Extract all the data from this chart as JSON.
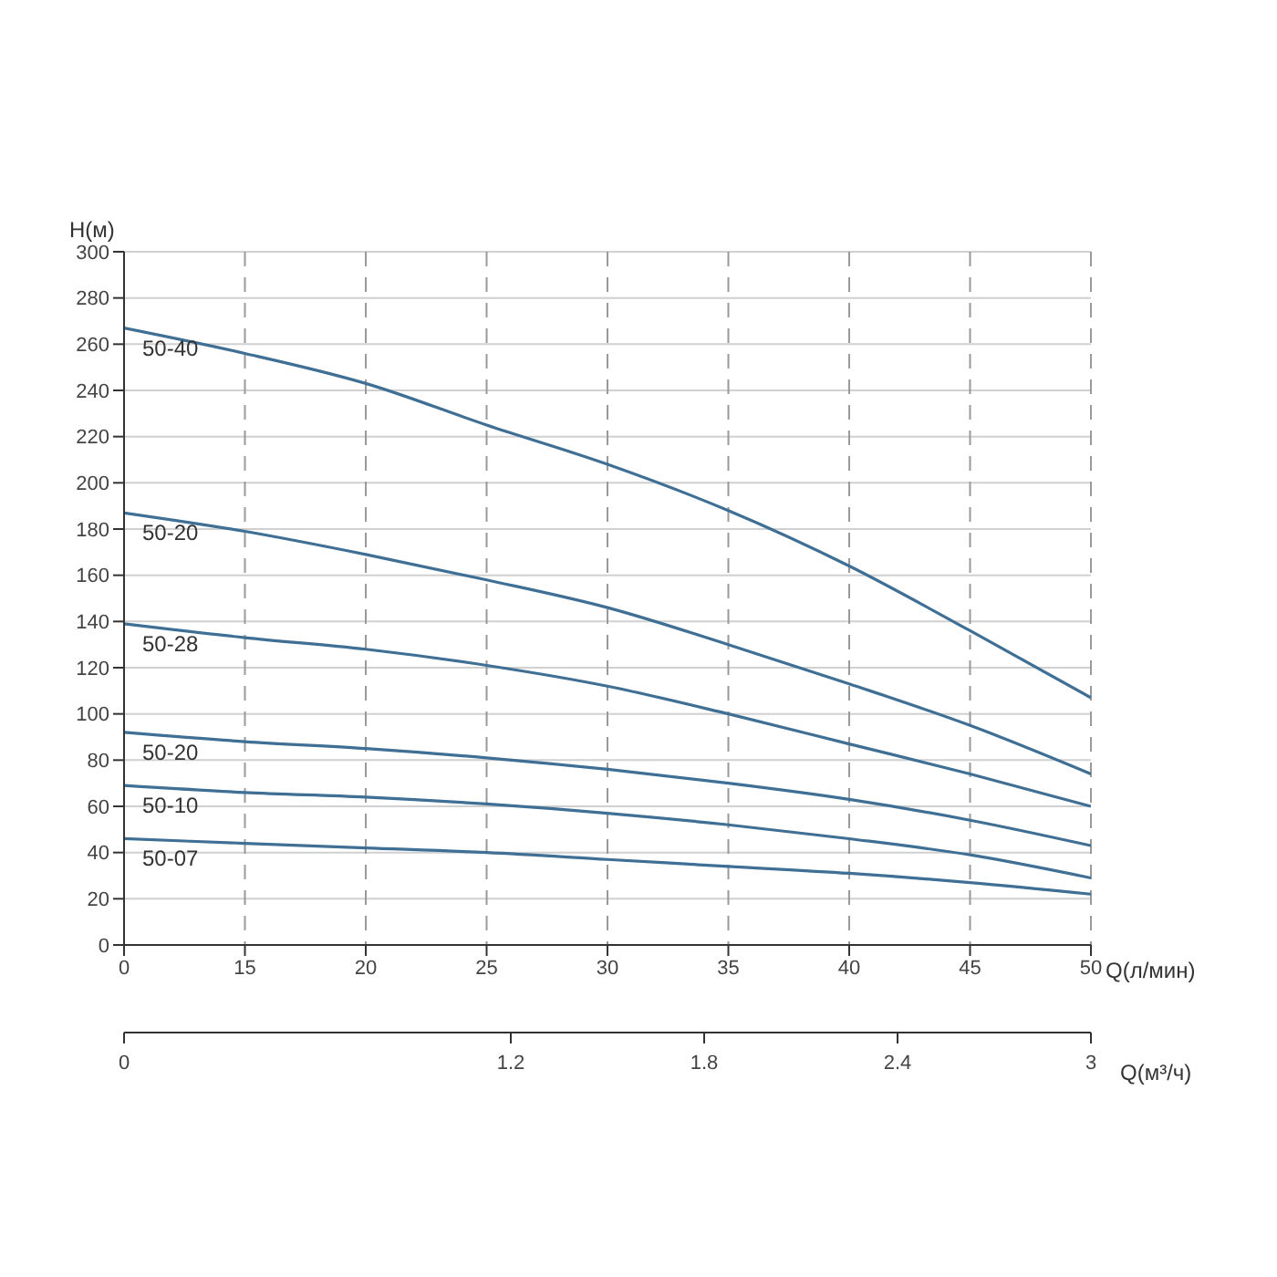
{
  "chart_data": {
    "type": "line",
    "xlabel": "Q(л/мин)",
    "x2label": "Q(м³/ч)",
    "ylabel": "H(м)",
    "categories": [
      "0",
      "15",
      "20",
      "25",
      "30",
      "35",
      "40",
      "45",
      "50"
    ],
    "x2lim": [
      0,
      3
    ],
    "x2ticks": [
      0,
      1.2,
      1.8,
      2.4,
      3
    ],
    "ylim": [
      0,
      300
    ],
    "yticks": [
      0,
      20,
      40,
      60,
      80,
      100,
      120,
      140,
      160,
      180,
      200,
      220,
      240,
      260,
      280,
      300
    ],
    "grid": true,
    "marker": "none",
    "line_style": "solid",
    "series": [
      {
        "name": "50-40",
        "color": "#3f6f94",
        "values": [
          267,
          256,
          243,
          225,
          208,
          188,
          164,
          136,
          107
        ]
      },
      {
        "name": "50-20",
        "color": "#3f6f94",
        "values": [
          187,
          179,
          169,
          158,
          146,
          130,
          113,
          95,
          74
        ]
      },
      {
        "name": "50-28",
        "color": "#3f6f94",
        "values": [
          139,
          133,
          128,
          121,
          112,
          100,
          87,
          74,
          60
        ]
      },
      {
        "name": "50-20",
        "color": "#3f6f94",
        "values": [
          92,
          88,
          85,
          81,
          76,
          70,
          63,
          54,
          43
        ]
      },
      {
        "name": "50-10",
        "color": "#3f6f94",
        "values": [
          69,
          66,
          64,
          61,
          57,
          52,
          46,
          39,
          29
        ]
      },
      {
        "name": "50-07",
        "color": "#3f6f94",
        "values": [
          46,
          44,
          42,
          40,
          37,
          34,
          31,
          27,
          22
        ]
      }
    ]
  }
}
